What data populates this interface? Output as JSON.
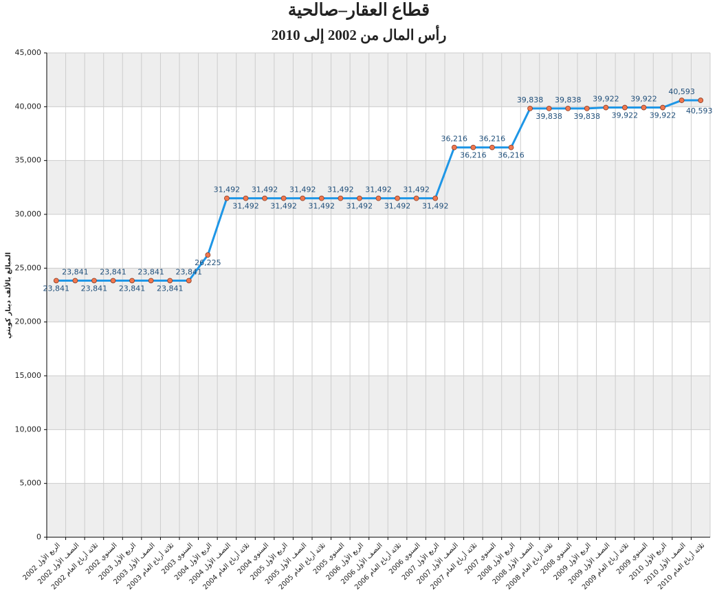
{
  "chart_data": {
    "type": "line",
    "title": "قطاع العقار–صالحية",
    "subtitle": "رأس المال من 2002 إلى 2010",
    "y_label": "المبالغ بالألف دينار كويتي",
    "categories": [
      "الربع الأول 2002",
      "النصف الأول 2002",
      "ثلاثة أرباع العام 2002",
      "السنوي 2002",
      "الربع الأول 2003",
      "النصف الأول 2003",
      "ثلاثة أرباع العام 2003",
      "السنوي 2003",
      "الربع الأول 2004",
      "النصف الأول 2004",
      "ثلاثة أرباع العام 2004",
      "السنوي 2004",
      "الربع الأول 2005",
      "النصف الأول 2005",
      "ثلاثة أرباع العام 2005",
      "السنوي 2005",
      "الربع الأول 2006",
      "النصف الأول 2006",
      "ثلاثة أرباع العام 2006",
      "السنوي 2006",
      "الربع الأول 2007",
      "النصف الأول 2007",
      "ثلاثة أرباع العام 2007",
      "السنوي 2007",
      "الربع الأول 2008",
      "النصف الأول 2008",
      "ثلاثة أرباع العام 2008",
      "السنوي 2008",
      "الربع الأول 2009",
      "النصف الأول 2009",
      "ثلاثة أرباع العام 2009",
      "السنوي 2009",
      "الربع الأول 2010",
      "النصف الأول 2010",
      "ثلاثة أرباع العام 2010"
    ],
    "values": [
      23841,
      23841,
      23841,
      23841,
      23841,
      23841,
      23841,
      23841,
      26225,
      31492,
      31492,
      31492,
      31492,
      31492,
      31492,
      31492,
      31492,
      31492,
      31492,
      31492,
      31492,
      36216,
      36216,
      36216,
      36216,
      39838,
      39838,
      39838,
      39838,
      39922,
      39922,
      39922,
      39922,
      40593,
      40593
    ],
    "value_labels": [
      "23,841",
      "23,841",
      "23,841",
      "23,841",
      "23,841",
      "23,841",
      "23,841",
      "23,841",
      "26,225",
      "31,492",
      "31,492",
      "31,492",
      "31,492",
      "31,492",
      "31,492",
      "31,492",
      "31,492",
      "31,492",
      "31,492",
      "31,492",
      "31,492",
      "36,216",
      "36,216",
      "36,216",
      "36,216",
      "39,838",
      "39,838",
      "39,838",
      "39,838",
      "39,922",
      "39,922",
      "39,922",
      "39,922",
      "40,593",
      "40,593"
    ],
    "color": "#1e96e6",
    "marker_color": "#f07850",
    "ylim": [
      0,
      45000
    ],
    "yticks": [
      0,
      {
        "value": 5000,
        "label": "5,000"
      },
      {
        "value": 10000,
        "label": "10,000"
      },
      {
        "value": 15000,
        "label": "15,000"
      },
      {
        "value": 20000,
        "label": "20,000"
      },
      {
        "value": 25000,
        "label": "25,000"
      },
      {
        "value": 30000,
        "label": "30,000"
      },
      {
        "value": 35000,
        "label": "35,000"
      },
      {
        "value": 40000,
        "label": "40,000"
      },
      {
        "value": 45000,
        "label": "45,000"
      }
    ],
    "grid": true
  }
}
